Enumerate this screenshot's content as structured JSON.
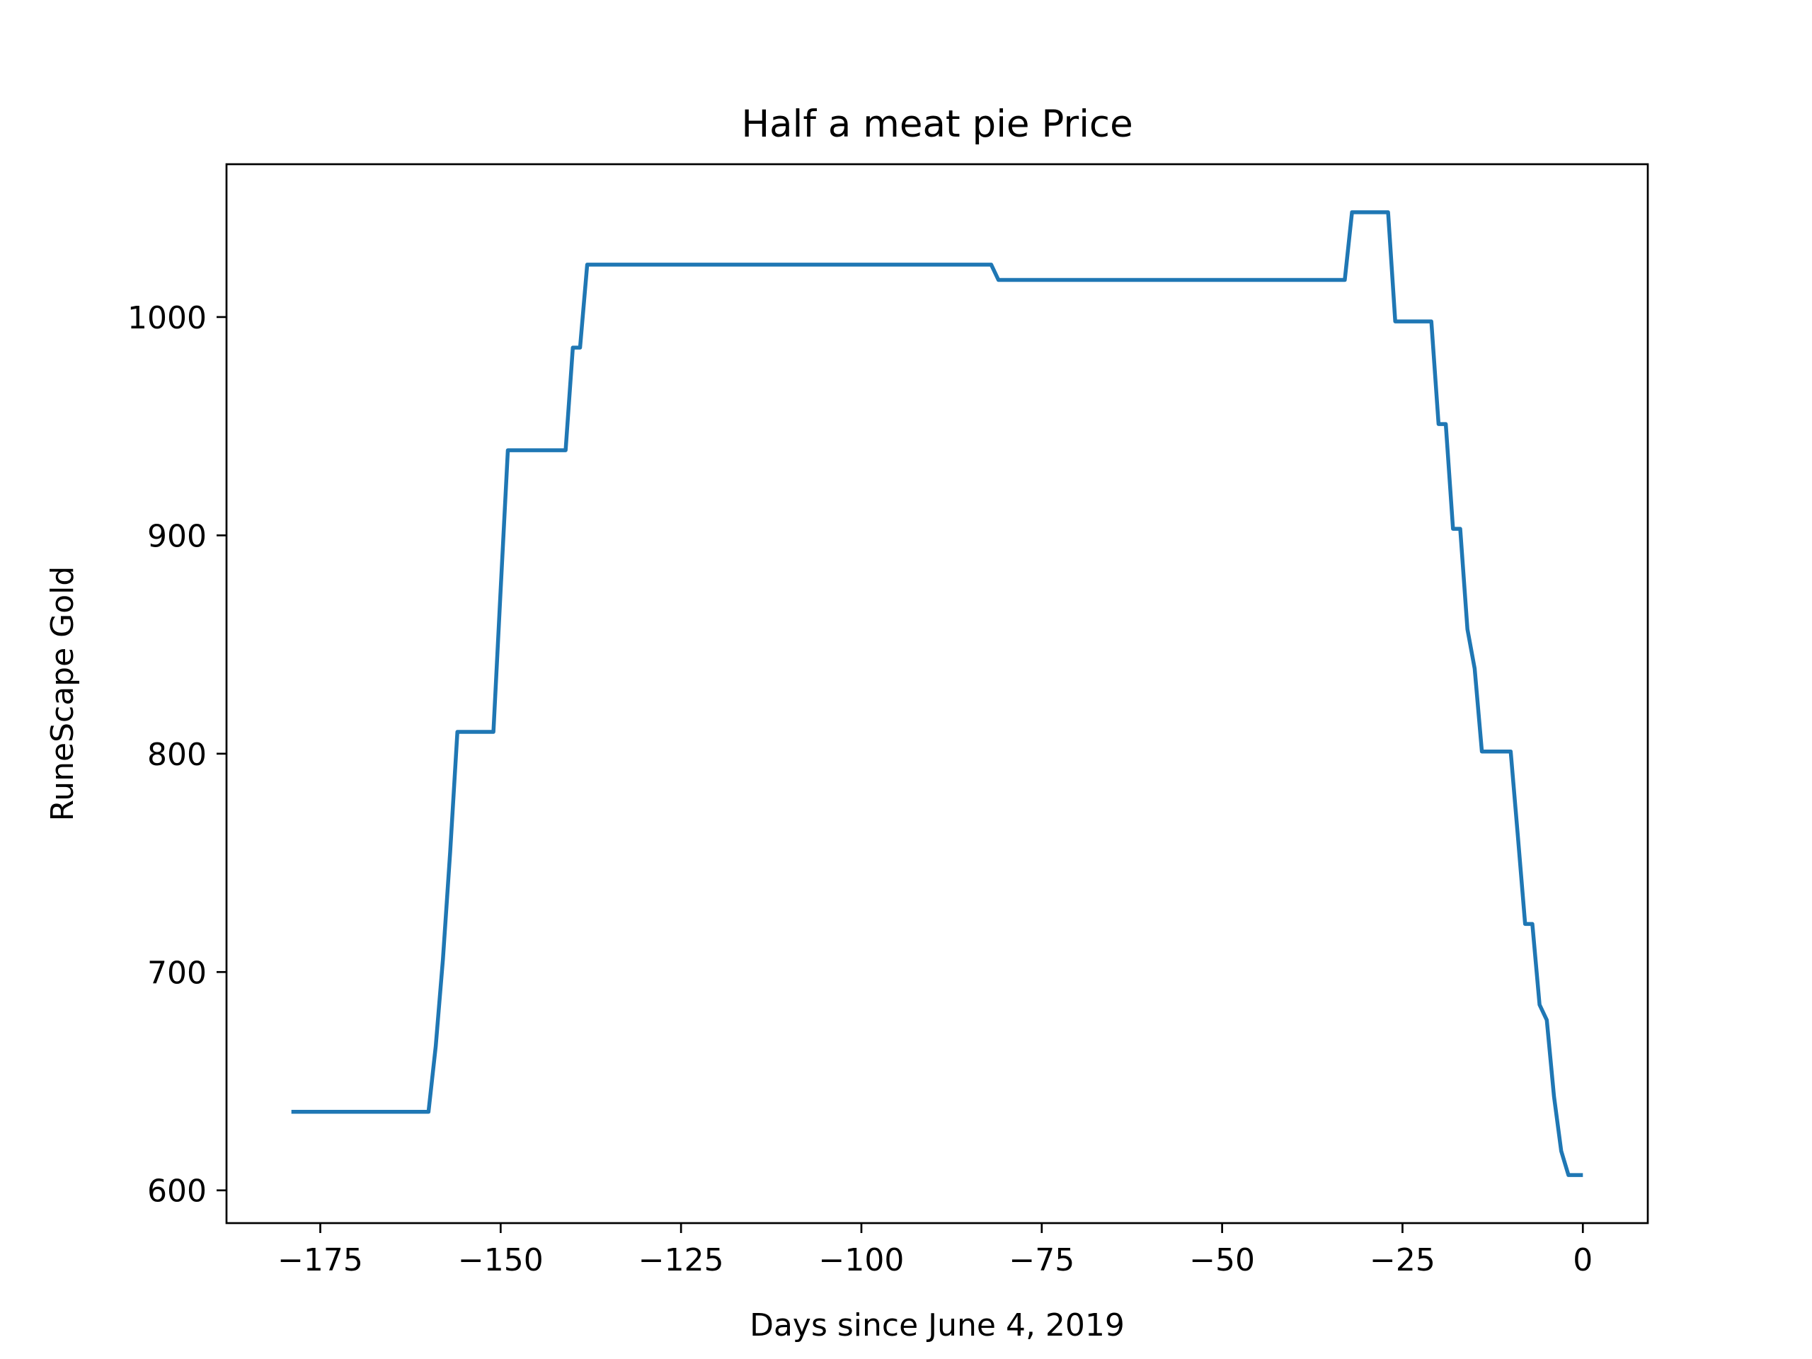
{
  "chart_data": {
    "type": "line",
    "title": "Half a meat pie Price",
    "xlabel": "Days since June 4, 2019",
    "ylabel": "RuneScape Gold",
    "xlim": [
      -188,
      9
    ],
    "ylim": [
      585,
      1070
    ],
    "xticks": [
      {
        "value": -175,
        "label": "−175"
      },
      {
        "value": -150,
        "label": "−150"
      },
      {
        "value": -125,
        "label": "−125"
      },
      {
        "value": -100,
        "label": "−100"
      },
      {
        "value": -75,
        "label": "−75"
      },
      {
        "value": -50,
        "label": "−50"
      },
      {
        "value": -25,
        "label": "−25"
      },
      {
        "value": 0,
        "label": "0"
      }
    ],
    "yticks": [
      {
        "value": 600,
        "label": "600"
      },
      {
        "value": 700,
        "label": "700"
      },
      {
        "value": 800,
        "label": "800"
      },
      {
        "value": 900,
        "label": "900"
      },
      {
        "value": 1000,
        "label": "1000"
      }
    ],
    "grid": false,
    "legend": false,
    "series": [
      {
        "color": "#1f77b4",
        "x": [
          -179,
          -160,
          -159,
          -158,
          -157,
          -156,
          -155,
          -151,
          -150,
          -149,
          -148,
          -141,
          -140,
          -139,
          -138,
          -137,
          -82,
          -81,
          -33,
          -32,
          -27,
          -26,
          -21,
          -20,
          -19,
          -18,
          -17,
          -16,
          -15,
          -14,
          -10,
          -9,
          -8,
          -7,
          -6,
          -5,
          -4,
          -3,
          -2,
          0
        ],
        "y": [
          636,
          636,
          666,
          706,
          755,
          810,
          810,
          810,
          875,
          939,
          939,
          939,
          986,
          986,
          1024,
          1024,
          1024,
          1017,
          1017,
          1048,
          1048,
          998,
          998,
          951,
          951,
          903,
          903,
          857,
          839,
          801,
          801,
          762,
          722,
          722,
          685,
          678,
          643,
          618,
          607,
          607
        ]
      }
    ]
  }
}
